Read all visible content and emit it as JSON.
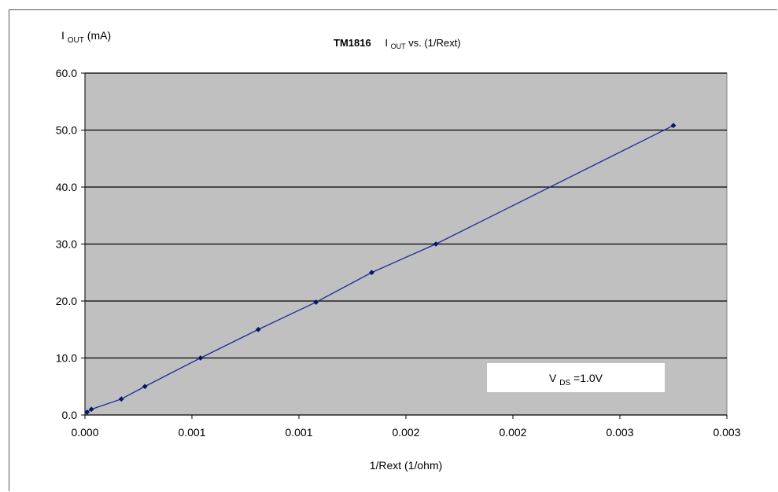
{
  "chart_data": {
    "type": "line",
    "title": {
      "prefix": "TM1816",
      "i_main": "I",
      "i_sub": "OUT",
      "suffix": " vs. (1/Rext)"
    },
    "ylabel": {
      "main": "I",
      "sub": "OUT",
      "unit": "(mA)"
    },
    "xlabel": "1/Rext (1/ohm)",
    "xlim": [
      0,
      0.003
    ],
    "ylim": [
      0,
      60
    ],
    "x_ticks": [
      0.0,
      0.0005,
      0.001,
      0.0015,
      0.002,
      0.0025,
      0.003
    ],
    "x_tick_labels": [
      "0.000",
      "0.001",
      "0.001",
      "0.002",
      "0.002",
      "0.003",
      "0.003"
    ],
    "y_ticks": [
      0,
      10,
      20,
      30,
      40,
      50,
      60
    ],
    "y_tick_labels": [
      "0.0",
      "10.0",
      "20.0",
      "30.0",
      "40.0",
      "50.0",
      "60.0"
    ],
    "grid": "horizontal",
    "series": [
      {
        "x": [
          1e-05,
          3e-05,
          0.00017,
          0.00028,
          0.00054,
          0.00081,
          0.00108,
          0.00134,
          0.00164,
          0.00275
        ],
        "y": [
          0.5,
          1.0,
          2.8,
          5.0,
          10.0,
          15.0,
          19.8,
          25.0,
          30.0,
          50.8
        ]
      }
    ],
    "annotation": {
      "main": "V",
      "sub": "DS",
      "value": "=1.0V"
    },
    "colors": {
      "plot_bg": "#c0c0c0",
      "line": "#1f2a9a",
      "marker": "#0a1466",
      "grid": "#000000"
    }
  }
}
